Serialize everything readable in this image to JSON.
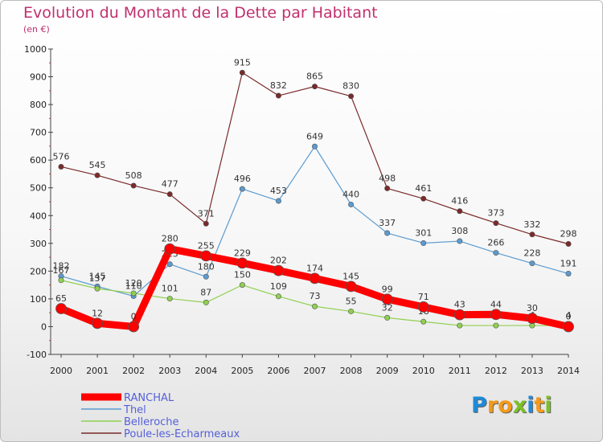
{
  "title": "Evolution du Montant de la Dette par Habitant",
  "subtitle": "(en €)",
  "logo": {
    "letters": [
      {
        "ch": "P",
        "color": "#1e8ad8"
      },
      {
        "ch": "r",
        "color": "#f39a1a"
      },
      {
        "ch": "o",
        "color": "#f39a1a"
      },
      {
        "ch": "x",
        "color": "#7cc024"
      },
      {
        "ch": "i",
        "color": "#1e8ad8"
      },
      {
        "ch": "t",
        "color": "#f39a1a"
      },
      {
        "ch": "i",
        "color": "#7cc024"
      }
    ]
  },
  "chart_data": {
    "type": "line",
    "title": "Evolution du Montant de la Dette par Habitant",
    "ylabel": "(en €)",
    "x": [
      "2000",
      "2001",
      "2002",
      "2003",
      "2004",
      "2005",
      "2006",
      "2007",
      "2008",
      "2009",
      "2010",
      "2011",
      "2012",
      "2013",
      "2014"
    ],
    "ylim": [
      -100,
      1000
    ],
    "yticks": [
      "-100",
      "0",
      "100",
      "200",
      "300",
      "400",
      "500",
      "600",
      "700",
      "800",
      "900",
      "1000"
    ],
    "grid": false,
    "legend_position": "bottom-left",
    "series": [
      {
        "name": "Poule-les-Echarmeaux",
        "color": "#7a2a2a",
        "width": 1.2,
        "values": [
          576,
          545,
          508,
          477,
          371,
          915,
          832,
          865,
          830,
          498,
          461,
          416,
          373,
          332,
          298
        ],
        "labels": [
          "576",
          "545",
          "508",
          "477",
          "371",
          "915",
          "832",
          "865",
          "830",
          "498",
          "461",
          "416",
          "373",
          "332",
          "298"
        ]
      },
      {
        "name": "Thel",
        "color": "#5b9bd0",
        "width": 1.2,
        "values": [
          182,
          145,
          110,
          225,
          180,
          496,
          453,
          649,
          440,
          337,
          301,
          308,
          266,
          228,
          191
        ],
        "labels": [
          "182",
          "145",
          "110",
          "225",
          "180",
          "496",
          "453",
          "649",
          "440",
          "337",
          "301",
          "308",
          "266",
          "228",
          "191"
        ]
      },
      {
        "name": "Belleroche",
        "color": "#90d050",
        "width": 1.2,
        "values": [
          167,
          137,
          120,
          101,
          87,
          150,
          109,
          73,
          55,
          32,
          18,
          4,
          4,
          4,
          4
        ],
        "labels": [
          "167",
          "137",
          "120",
          "101",
          "87",
          "150",
          "109",
          "73",
          "55",
          "32",
          "18",
          "4",
          "4",
          "4",
          "4"
        ]
      },
      {
        "name": "RANCHAL",
        "color": "#ff0000",
        "width": 9,
        "values": [
          65,
          12,
          0,
          280,
          255,
          229,
          202,
          174,
          145,
          99,
          71,
          43,
          44,
          30,
          0
        ],
        "labels": [
          "65",
          "12",
          "0",
          "280",
          "255",
          "229",
          "202",
          "174",
          "145",
          "99",
          "71",
          "43",
          "44",
          "30",
          "0"
        ]
      }
    ],
    "legend": [
      "RANCHAL",
      "Thel",
      "Belleroche",
      "Poule-les-Echarmeaux"
    ]
  }
}
